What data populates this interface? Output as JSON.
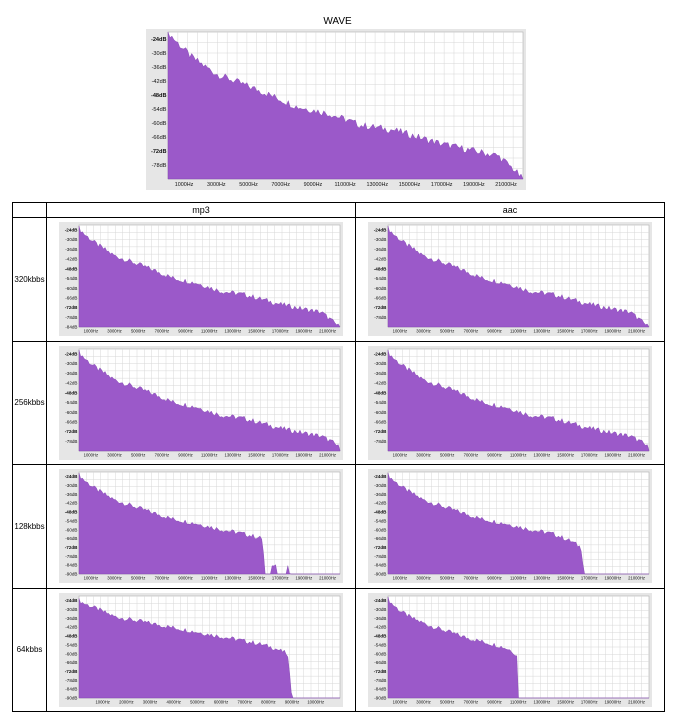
{
  "figure": {
    "column_headers": [
      "mp3",
      "aac"
    ],
    "row_labels": [
      "320kbbs",
      "256kbbs",
      "128kbbs",
      "64kbbs"
    ]
  },
  "chart_data": [
    {
      "id": "wave",
      "type": "area",
      "title": "WAVE",
      "color": "#9b59c9",
      "ylim": [
        -84,
        -21
      ],
      "yticks": [
        "-24dB",
        "-30dB",
        "-36dB",
        "-42dB",
        "-48dB",
        "-54dB",
        "-60dB",
        "-66dB",
        "-72dB",
        "-78dB"
      ],
      "xlim": [
        0,
        22050
      ],
      "xticks": [
        "1000Hz",
        "3000Hz",
        "5000Hz",
        "7000Hz",
        "9000Hz",
        "11000Hz",
        "13000Hz",
        "15000Hz",
        "17000Hz",
        "19000Hz",
        "21000Hz"
      ],
      "x": [
        0,
        500,
        1500,
        3000,
        4500,
        6000,
        8000,
        10000,
        12000,
        14000,
        15500,
        17000,
        19000,
        20500,
        21500,
        22000
      ],
      "values": [
        -21,
        -25,
        -32,
        -39,
        -43,
        -47,
        -53,
        -56,
        -61,
        -63,
        -66,
        -69,
        -72,
        -74,
        -80,
        -84
      ]
    },
    {
      "id": "mp3-320",
      "type": "area",
      "color": "#9b59c9",
      "ylim": [
        -84,
        -21
      ],
      "yticks": [
        "-24dB",
        "-30dB",
        "-36dB",
        "-42dB",
        "-48dB",
        "-54dB",
        "-60dB",
        "-66dB",
        "-72dB",
        "-78dB",
        "-84dB"
      ],
      "xlim": [
        0,
        22050
      ],
      "xticks": [
        "1000Hz",
        "3000Hz",
        "5000Hz",
        "7000Hz",
        "9000Hz",
        "11000Hz",
        "13000Hz",
        "15000Hz",
        "17000Hz",
        "19000Hz",
        "21000Hz"
      ],
      "x": [
        0,
        500,
        1500,
        3000,
        4500,
        6000,
        8000,
        10000,
        12000,
        14000,
        15500,
        17000,
        19000,
        20500,
        21500,
        22000
      ],
      "values": [
        -23,
        -27,
        -33,
        -40,
        -44,
        -48,
        -54,
        -57,
        -62,
        -64,
        -67,
        -70,
        -73,
        -75,
        -81,
        -84
      ]
    },
    {
      "id": "aac-320",
      "type": "area",
      "color": "#9b59c9",
      "ylim": [
        -84,
        -21
      ],
      "yticks": [
        "-24dB",
        "-30dB",
        "-36dB",
        "-42dB",
        "-48dB",
        "-54dB",
        "-60dB",
        "-66dB",
        "-72dB",
        "-78dB"
      ],
      "xlim": [
        0,
        22050
      ],
      "xticks": [
        "1000Hz",
        "3000Hz",
        "5000Hz",
        "7000Hz",
        "9000Hz",
        "11000Hz",
        "13000Hz",
        "15000Hz",
        "17000Hz",
        "19000Hz",
        "21000Hz"
      ],
      "x": [
        0,
        500,
        1500,
        3000,
        4500,
        6000,
        8000,
        10000,
        12000,
        14000,
        15500,
        17000,
        19000,
        20500,
        21500,
        22000
      ],
      "values": [
        -23,
        -27,
        -33,
        -40,
        -44,
        -48,
        -54,
        -57,
        -62,
        -64,
        -67,
        -70,
        -73,
        -75,
        -81,
        -84
      ]
    },
    {
      "id": "mp3-256",
      "type": "area",
      "color": "#9b59c9",
      "ylim": [
        -84,
        -21
      ],
      "yticks": [
        "-24dB",
        "-30dB",
        "-36dB",
        "-42dB",
        "-48dB",
        "-54dB",
        "-60dB",
        "-66dB",
        "-72dB",
        "-78dB"
      ],
      "xlim": [
        0,
        22050
      ],
      "xticks": [
        "1000Hz",
        "3000Hz",
        "5000Hz",
        "7000Hz",
        "9000Hz",
        "11000Hz",
        "13000Hz",
        "15000Hz",
        "17000Hz",
        "19000Hz",
        "21000Hz"
      ],
      "x": [
        0,
        500,
        1500,
        3000,
        4500,
        6000,
        8000,
        10000,
        12000,
        14000,
        15500,
        17000,
        19000,
        20500,
        21500,
        22000
      ],
      "values": [
        -23,
        -27,
        -33,
        -40,
        -44,
        -48,
        -54,
        -57,
        -62,
        -64,
        -67,
        -70,
        -73,
        -75,
        -79,
        -82
      ]
    },
    {
      "id": "aac-256",
      "type": "area",
      "color": "#9b59c9",
      "ylim": [
        -84,
        -21
      ],
      "yticks": [
        "-24dB",
        "-30dB",
        "-36dB",
        "-42dB",
        "-48dB",
        "-54dB",
        "-60dB",
        "-66dB",
        "-72dB",
        "-78dB"
      ],
      "xlim": [
        0,
        22050
      ],
      "xticks": [
        "1000Hz",
        "3000Hz",
        "5000Hz",
        "7000Hz",
        "9000Hz",
        "11000Hz",
        "13000Hz",
        "15000Hz",
        "17000Hz",
        "19000Hz",
        "21000Hz"
      ],
      "x": [
        0,
        500,
        1500,
        3000,
        4500,
        6000,
        8000,
        10000,
        12000,
        14000,
        15500,
        17000,
        19000,
        20500,
        21500,
        22000
      ],
      "values": [
        -23,
        -27,
        -33,
        -40,
        -44,
        -48,
        -54,
        -57,
        -62,
        -64,
        -67,
        -70,
        -73,
        -75,
        -79,
        -82
      ]
    },
    {
      "id": "mp3-128",
      "type": "area",
      "color": "#9b59c9",
      "ylim": [
        -90,
        -21
      ],
      "yticks": [
        "-24dB",
        "-30dB",
        "-36dB",
        "-42dB",
        "-48dB",
        "-54dB",
        "-60dB",
        "-66dB",
        "-72dB",
        "-78dB",
        "-84dB",
        "-90dB"
      ],
      "xlim": [
        0,
        22050
      ],
      "xticks": [
        "1000Hz",
        "3000Hz",
        "5000Hz",
        "7000Hz",
        "9000Hz",
        "11000Hz",
        "13000Hz",
        "15000Hz",
        "17000Hz",
        "19000Hz",
        "21000Hz"
      ],
      "x": [
        0,
        500,
        1500,
        3000,
        4500,
        6000,
        8000,
        10000,
        12000,
        14000,
        15500,
        15700,
        15800,
        16200,
        16300,
        16600,
        16700,
        17500,
        17600,
        17800,
        22000
      ],
      "values": [
        -23,
        -27,
        -33,
        -40,
        -44,
        -48,
        -53,
        -56,
        -60,
        -63,
        -66,
        -90,
        -90,
        -90,
        -83,
        -83,
        -90,
        -90,
        -84,
        -90,
        -90
      ]
    },
    {
      "id": "aac-128",
      "type": "area",
      "color": "#9b59c9",
      "ylim": [
        -90,
        -21
      ],
      "yticks": [
        "-24dB",
        "-30dB",
        "-36dB",
        "-42dB",
        "-48dB",
        "-54dB",
        "-60dB",
        "-66dB",
        "-72dB",
        "-78dB",
        "-84dB",
        "-90dB"
      ],
      "xlim": [
        0,
        22050
      ],
      "xticks": [
        "1000Hz",
        "3000Hz",
        "5000Hz",
        "7000Hz",
        "9000Hz",
        "11000Hz",
        "13000Hz",
        "15000Hz",
        "17000Hz",
        "19000Hz",
        "21000Hz"
      ],
      "x": [
        0,
        500,
        1500,
        3000,
        4500,
        6000,
        8000,
        10000,
        12000,
        14000,
        15500,
        16300,
        16600,
        22000
      ],
      "values": [
        -23,
        -27,
        -33,
        -40,
        -44,
        -48,
        -53,
        -56,
        -60,
        -63,
        -68,
        -72,
        -90,
        -90
      ]
    },
    {
      "id": "mp3-64",
      "type": "area",
      "color": "#9b59c9",
      "ylim": [
        -90,
        -21
      ],
      "yticks": [
        "-24dB",
        "-30dB",
        "-36dB",
        "-42dB",
        "-48dB",
        "-54dB",
        "-60dB",
        "-66dB",
        "-72dB",
        "-78dB",
        "-84dB",
        "-90dB"
      ],
      "xlim": [
        0,
        11025
      ],
      "xticks": [
        "1000Hz",
        "2000Hz",
        "3000Hz",
        "4000Hz",
        "5000Hz",
        "6000Hz",
        "7000Hz",
        "8000Hz",
        "9000Hz",
        "10000Hz"
      ],
      "x": [
        0,
        200,
        800,
        1500,
        2500,
        3500,
        4500,
        5500,
        6500,
        7500,
        8200,
        8800,
        9000,
        11025
      ],
      "values": [
        -24,
        -26,
        -30,
        -35,
        -38,
        -41,
        -44,
        -47,
        -50,
        -53,
        -56,
        -60,
        -90,
        -90
      ]
    },
    {
      "id": "aac-64",
      "type": "area",
      "color": "#9b59c9",
      "ylim": [
        -90,
        -21
      ],
      "yticks": [
        "-24dB",
        "-30dB",
        "-36dB",
        "-42dB",
        "-48dB",
        "-54dB",
        "-60dB",
        "-66dB",
        "-72dB",
        "-78dB",
        "-84dB",
        "-90dB"
      ],
      "xlim": [
        0,
        22050
      ],
      "xticks": [
        "1000Hz",
        "3000Hz",
        "5000Hz",
        "7000Hz",
        "9000Hz",
        "11000Hz",
        "13000Hz",
        "15000Hz",
        "17000Hz",
        "19000Hz",
        "21000Hz"
      ],
      "x": [
        0,
        300,
        1000,
        2000,
        3500,
        5000,
        6500,
        8000,
        9500,
        10500,
        10900,
        11000,
        22050
      ],
      "values": [
        -23,
        -26,
        -31,
        -36,
        -41,
        -45,
        -49,
        -52,
        -55,
        -58,
        -62,
        -90,
        -90
      ]
    }
  ]
}
